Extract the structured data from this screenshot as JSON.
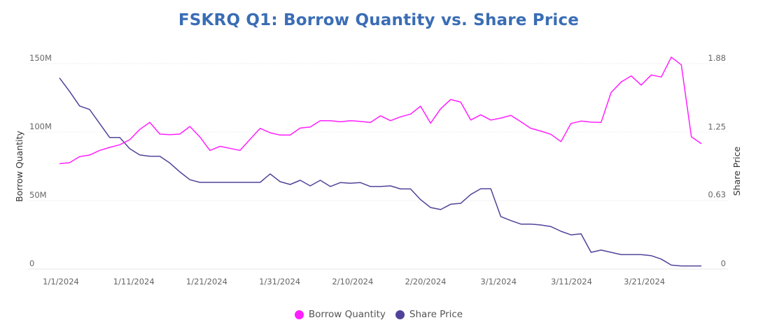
{
  "chart_data": {
    "type": "line",
    "title": "FSKRQ Q1: Borrow Quantity vs. Share Price",
    "xlabel": "",
    "ylabel_left": "Borrow Quantity",
    "ylabel_right": "Share Price",
    "y_left": {
      "range": [
        0,
        150000000
      ],
      "ticks": [
        0,
        50000000,
        100000000,
        150000000
      ],
      "tick_labels": [
        "0",
        "50M",
        "100M",
        "150M"
      ]
    },
    "y_right": {
      "range": [
        0,
        1.88
      ],
      "ticks": [
        0,
        0.63,
        1.25,
        1.88
      ],
      "tick_labels": [
        "0",
        "0.63",
        "1.25",
        "1.88"
      ]
    },
    "x_ticks": [
      "1/1/2024",
      "1/11/2024",
      "1/21/2024",
      "1/31/2024",
      "2/10/2024",
      "2/20/2024",
      "3/1/2024",
      "3/11/2024",
      "3/21/2024"
    ],
    "grid": "horizontal",
    "legend": "bottom",
    "x": [
      "2024-01-01",
      "2024-01-02",
      "2024-01-03",
      "2024-01-04",
      "2024-01-05",
      "2024-01-08",
      "2024-01-09",
      "2024-01-10",
      "2024-01-11",
      "2024-01-12",
      "2024-01-15",
      "2024-01-16",
      "2024-01-17",
      "2024-01-18",
      "2024-01-19",
      "2024-01-22",
      "2024-01-23",
      "2024-01-24",
      "2024-01-25",
      "2024-01-26",
      "2024-01-29",
      "2024-01-30",
      "2024-01-31",
      "2024-02-01",
      "2024-02-02",
      "2024-02-05",
      "2024-02-06",
      "2024-02-07",
      "2024-02-08",
      "2024-02-09",
      "2024-02-12",
      "2024-02-13",
      "2024-02-14",
      "2024-02-15",
      "2024-02-16",
      "2024-02-19",
      "2024-02-20",
      "2024-02-21",
      "2024-02-22",
      "2024-02-23",
      "2024-02-26",
      "2024-02-27",
      "2024-02-28",
      "2024-02-29",
      "2024-03-01",
      "2024-03-04",
      "2024-03-05",
      "2024-03-06",
      "2024-03-07",
      "2024-03-08",
      "2024-03-11",
      "2024-03-12",
      "2024-03-13",
      "2024-03-14",
      "2024-03-15",
      "2024-03-18",
      "2024-03-19",
      "2024-03-20",
      "2024-03-21",
      "2024-03-22",
      "2024-03-25",
      "2024-03-26",
      "2024-03-27",
      "2024-03-28",
      "2024-03-29"
    ],
    "series": [
      {
        "name": "Borrow Quantity",
        "axis": "left",
        "color": "#ff1fff",
        "values": [
          77.0,
          77.6,
          82.1,
          83.2,
          86.6,
          88.8,
          90.7,
          94.4,
          101.9,
          107.1,
          98.5,
          98.1,
          98.5,
          104.1,
          96.4,
          86.6,
          89.6,
          88.1,
          86.6,
          94.7,
          102.7,
          99.5,
          97.8,
          97.8,
          102.9,
          103.7,
          108.3,
          108.3,
          107.5,
          108.3,
          107.8,
          107.0,
          111.9,
          108.3,
          111.1,
          113.1,
          118.9,
          106.5,
          117.0,
          123.8,
          121.9,
          108.8,
          112.6,
          108.8,
          110.2,
          112.2,
          107.5,
          102.7,
          100.7,
          98.3,
          93.0,
          106.3,
          108.0,
          107.3,
          107.0,
          128.9,
          136.6,
          141.0,
          134.3,
          141.7,
          140.2,
          154.7,
          149.1,
          96.6,
          91.5
        ],
        "unit": "M"
      },
      {
        "name": "Share Price",
        "axis": "right",
        "color": "#4f4399",
        "values": [
          1.748,
          1.626,
          1.492,
          1.46,
          1.332,
          1.204,
          1.204,
          1.102,
          1.044,
          1.032,
          1.032,
          0.97,
          0.889,
          0.817,
          0.793,
          0.793,
          0.793,
          0.793,
          0.793,
          0.793,
          0.793,
          0.87,
          0.799,
          0.774,
          0.812,
          0.761,
          0.812,
          0.755,
          0.791,
          0.785,
          0.791,
          0.755,
          0.755,
          0.761,
          0.733,
          0.733,
          0.635,
          0.563,
          0.544,
          0.593,
          0.601,
          0.682,
          0.735,
          0.735,
          0.48,
          0.443,
          0.411,
          0.411,
          0.403,
          0.388,
          0.345,
          0.313,
          0.322,
          0.153,
          0.173,
          0.153,
          0.132,
          0.132,
          0.132,
          0.122,
          0.091,
          0.036,
          0.028,
          0.028,
          0.028
        ]
      }
    ]
  }
}
